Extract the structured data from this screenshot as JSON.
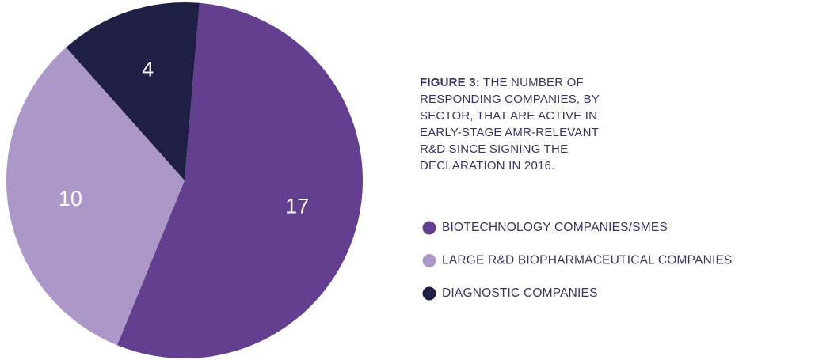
{
  "chart_data": {
    "type": "pie",
    "figure_label": "FIGURE 3:",
    "title": "THE NUMBER OF RESPONDING COMPANIES, BY SECTOR, THAT ARE ACTIVE IN EARLY-STAGE AMR-RELEVANT R&D SINCE SIGNING THE DECLARATION IN 2016.",
    "categories": [
      "BIOTECHNOLOGY COMPANIES/SMES",
      "LARGE R&D BIOPHARMACEUTICAL COMPANIES",
      "DIAGNOSTIC COMPANIES"
    ],
    "values": [
      17,
      10,
      4
    ],
    "colors": [
      "#643f8f",
      "#ab98c9",
      "#1f1f45"
    ]
  }
}
